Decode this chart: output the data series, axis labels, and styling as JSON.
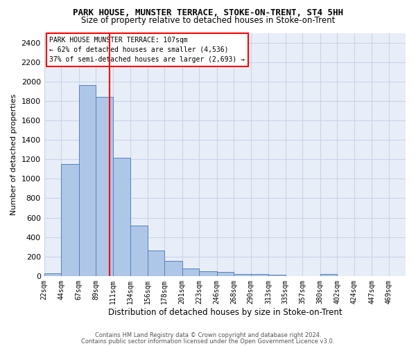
{
  "title": "PARK HOUSE, MUNSTER TERRACE, STOKE-ON-TRENT, ST4 5HH",
  "subtitle": "Size of property relative to detached houses in Stoke-on-Trent",
  "xlabel": "Distribution of detached houses by size in Stoke-on-Trent",
  "ylabel": "Number of detached properties",
  "footer_line1": "Contains HM Land Registry data © Crown copyright and database right 2024.",
  "footer_line2": "Contains public sector information licensed under the Open Government Licence v3.0.",
  "bins": [
    "22sqm",
    "44sqm",
    "67sqm",
    "89sqm",
    "111sqm",
    "134sqm",
    "156sqm",
    "178sqm",
    "201sqm",
    "223sqm",
    "246sqm",
    "268sqm",
    "290sqm",
    "313sqm",
    "335sqm",
    "357sqm",
    "380sqm",
    "402sqm",
    "424sqm",
    "447sqm",
    "469sqm"
  ],
  "values": [
    30,
    1150,
    1960,
    1840,
    1215,
    515,
    265,
    155,
    80,
    50,
    45,
    20,
    20,
    13,
    0,
    0,
    20,
    0,
    0,
    0,
    0
  ],
  "bar_color": "#aec6e8",
  "bar_edge_color": "#5580b8",
  "grid_color": "#c8d4e8",
  "background_color": "#e8eef8",
  "annotation_line1": "PARK HOUSE MUNSTER TERRACE: 107sqm",
  "annotation_line2": "← 62% of detached houses are smaller (4,536)",
  "annotation_line3": "37% of semi-detached houses are larger (2,693) →",
  "annotation_box_color": "red",
  "ylim": [
    0,
    2500
  ],
  "yticks": [
    0,
    200,
    400,
    600,
    800,
    1000,
    1200,
    1400,
    1600,
    1800,
    2000,
    2200,
    2400
  ],
  "bin_positions": [
    22,
    44,
    67,
    89,
    111,
    134,
    156,
    178,
    201,
    223,
    246,
    268,
    290,
    313,
    335,
    357,
    380,
    402,
    424,
    447,
    469,
    491
  ]
}
